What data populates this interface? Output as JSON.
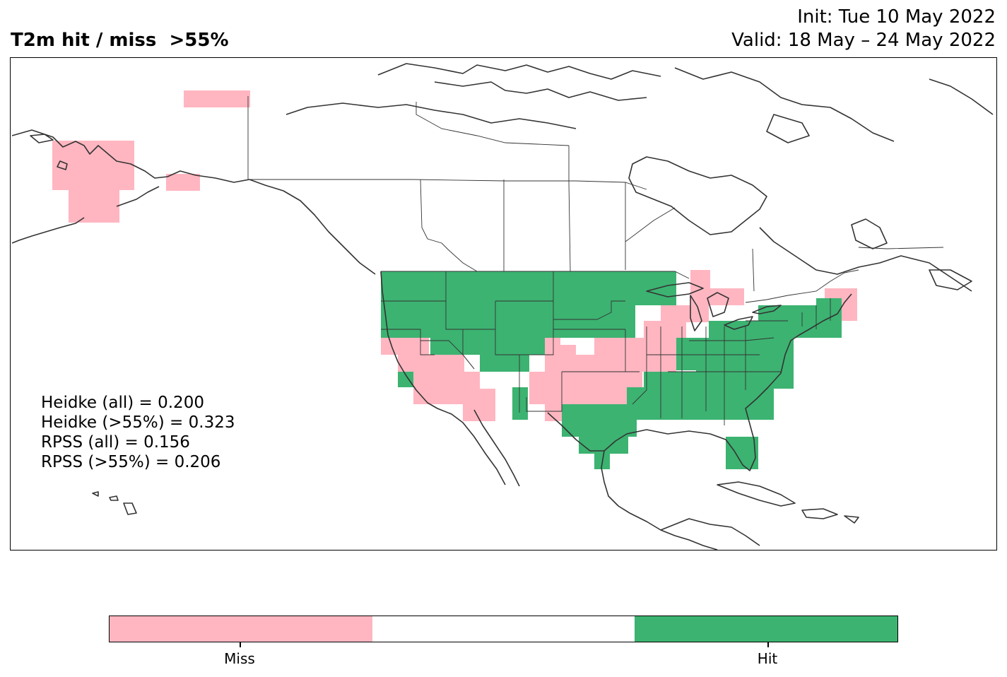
{
  "title": "T2m hit / miss  >55%",
  "init": "Init: Tue 10 May 2022",
  "valid": "Valid: 18 May – 24 May 2022",
  "scores": [
    "Heidke (all) = 0.200",
    "Heidke (>55%) = 0.323",
    "RPSS (all) = 0.156",
    "RPSS (>55%) = 0.206"
  ],
  "colorbar": {
    "colors": [
      "#ffb6c1",
      "#ffffff",
      "#3cb371"
    ],
    "miss_label": "Miss",
    "hit_label": "Hit"
  },
  "colors": {
    "miss": "#ffb6c1",
    "hit": "#3cb371",
    "coast": "#333333"
  }
}
